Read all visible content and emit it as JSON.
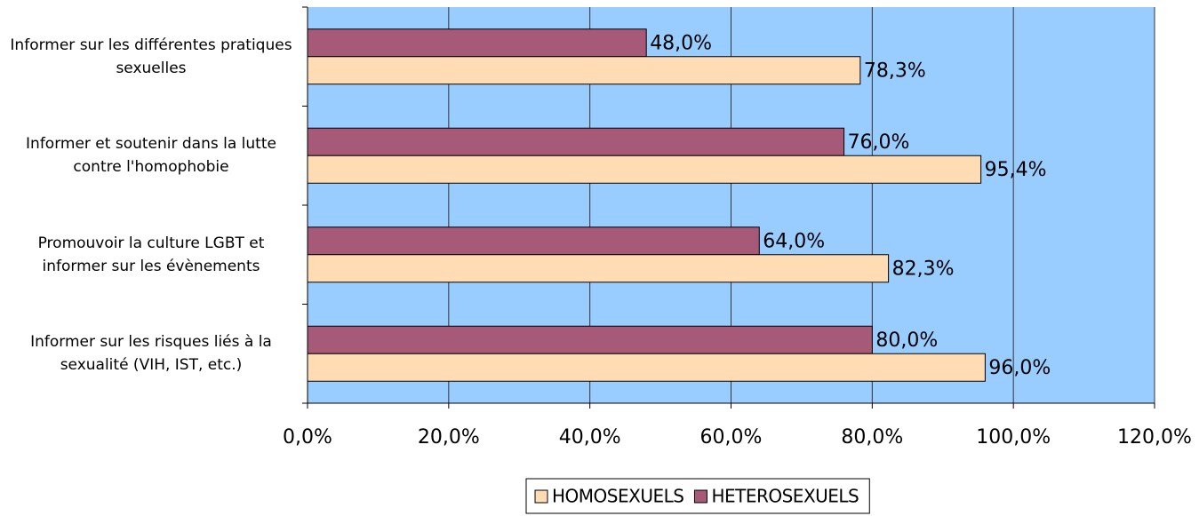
{
  "chart_data": {
    "type": "hbar",
    "categories": [
      "Informer sur les différentes pratiques sexuelles",
      "Informer et soutenir dans la lutte contre l'homophobie",
      "Promouvoir la culture LGBT et informer sur les évènements",
      "Informer sur les risques liés à la sexualité (VIH, IST, etc.)"
    ],
    "series": [
      {
        "name": "HOMOSEXUELS",
        "color": "#ffdcb4",
        "values": [
          78.3,
          95.4,
          82.3,
          96.0
        ],
        "value_labels": [
          "78,3%",
          "95,4%",
          "82,3%",
          "96,0%"
        ]
      },
      {
        "name": "HETEROSEXUELS",
        "color": "#a65a78",
        "values": [
          48.0,
          76.0,
          64.0,
          80.0
        ],
        "value_labels": [
          "48,0%",
          "76,0%",
          "64,0%",
          "80,0%"
        ]
      }
    ],
    "xlim": [
      0,
      120
    ],
    "xticks": [
      {
        "value": 0,
        "label": "0,0%"
      },
      {
        "value": 20,
        "label": "20,0%"
      },
      {
        "value": 40,
        "label": "40,0%"
      },
      {
        "value": 60,
        "label": "60,0%"
      },
      {
        "value": 80,
        "label": "80,0%"
      },
      {
        "value": 100,
        "label": "100,0%"
      },
      {
        "value": 120,
        "label": "120,0%"
      }
    ],
    "grid": true,
    "background": "#99ccff",
    "legend": "bottom"
  }
}
